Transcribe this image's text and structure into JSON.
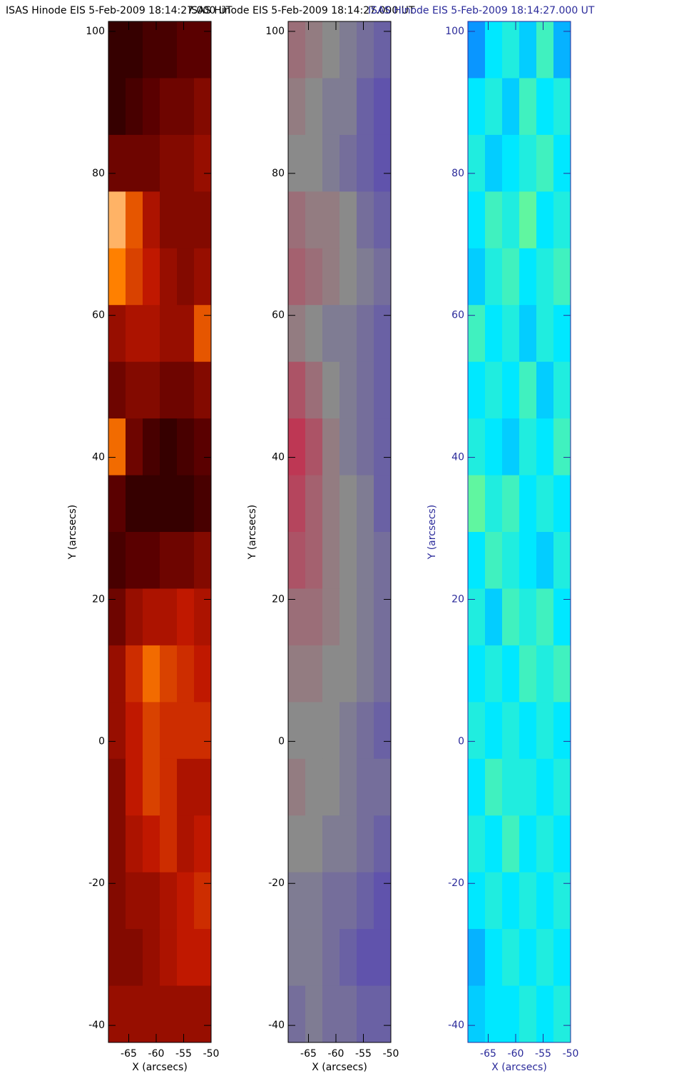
{
  "chart_data": [
    {
      "type": "heatmap",
      "title": "ISAS Hinode EIS  5-Feb-2009 18:14:27.000 UT",
      "xlabel": "X (arcsecs)",
      "ylabel": "Y (arcsecs)",
      "xlim": [
        -68.7,
        -50
      ],
      "ylim": [
        -42.4,
        101.4
      ],
      "xticks": [
        -65,
        -60,
        -55,
        -50
      ],
      "yticks": [
        -40,
        -20,
        0,
        20,
        40,
        60,
        80,
        100
      ],
      "color": "#000000",
      "zlim": [
        0,
        100
      ],
      "colormap": [
        "#000000",
        "#5a0000",
        "#c01800",
        "#ff8000",
        "#ffffff"
      ],
      "values": [
        [
          15,
          15,
          20,
          20,
          25,
          25
        ],
        [
          15,
          20,
          25,
          30,
          30,
          35
        ],
        [
          30,
          30,
          30,
          35,
          35,
          40
        ],
        [
          85,
          65,
          45,
          35,
          35,
          35
        ],
        [
          75,
          60,
          50,
          40,
          35,
          40
        ],
        [
          40,
          45,
          45,
          40,
          40,
          65
        ],
        [
          30,
          35,
          35,
          30,
          30,
          35
        ],
        [
          70,
          30,
          20,
          15,
          20,
          25
        ],
        [
          25,
          15,
          15,
          15,
          15,
          20
        ],
        [
          20,
          25,
          25,
          30,
          30,
          35
        ],
        [
          30,
          40,
          45,
          45,
          50,
          45
        ],
        [
          40,
          55,
          70,
          60,
          55,
          50
        ],
        [
          40,
          50,
          60,
          55,
          55,
          55
        ],
        [
          35,
          50,
          60,
          55,
          45,
          45
        ],
        [
          35,
          45,
          50,
          55,
          45,
          50
        ],
        [
          35,
          40,
          40,
          45,
          50,
          55
        ],
        [
          35,
          35,
          40,
          45,
          50,
          50
        ],
        [
          40,
          40,
          40,
          40,
          40,
          40
        ]
      ]
    },
    {
      "type": "heatmap",
      "title": "ISAS Hinode EIS  5-Feb-2009 18:14:27.000 UT",
      "xlabel": "X (arcsecs)",
      "ylabel": "Y (arcsecs)",
      "xlim": [
        -68.7,
        -50
      ],
      "ylim": [
        -42.4,
        101.4
      ],
      "xticks": [
        -65,
        -60,
        -55,
        -50
      ],
      "yticks": [
        -40,
        -20,
        0,
        20,
        40,
        60,
        80,
        100
      ],
      "color": "#000000",
      "zlim": [
        -50,
        50
      ],
      "colormap": [
        "#2000e0",
        "#8a8a8a",
        "#e00030"
      ],
      "values": [
        [
          10,
          5,
          0,
          -5,
          -10,
          -15
        ],
        [
          5,
          0,
          -5,
          -5,
          -15,
          -20
        ],
        [
          0,
          0,
          -5,
          -10,
          -15,
          -20
        ],
        [
          10,
          5,
          5,
          0,
          -10,
          -15
        ],
        [
          15,
          10,
          5,
          0,
          -5,
          -10
        ],
        [
          5,
          0,
          -5,
          -5,
          -10,
          -15
        ],
        [
          20,
          10,
          0,
          -5,
          -10,
          -15
        ],
        [
          30,
          20,
          5,
          -5,
          -10,
          -15
        ],
        [
          25,
          15,
          5,
          0,
          -5,
          -15
        ],
        [
          20,
          15,
          5,
          0,
          -5,
          -10
        ],
        [
          10,
          10,
          5,
          0,
          -5,
          -10
        ],
        [
          5,
          5,
          0,
          0,
          -5,
          -10
        ],
        [
          0,
          0,
          0,
          -5,
          -10,
          -15
        ],
        [
          5,
          0,
          0,
          -5,
          -10,
          -10
        ],
        [
          0,
          0,
          -5,
          -5,
          -10,
          -15
        ],
        [
          -5,
          -5,
          -10,
          -10,
          -15,
          -20
        ],
        [
          -5,
          -5,
          -10,
          -15,
          -20,
          -20
        ],
        [
          -10,
          -5,
          -10,
          -10,
          -15,
          -15
        ]
      ]
    },
    {
      "type": "heatmap",
      "title": "ISAS Hinode EIS  5-Feb-2009 18:14:27.000 UT",
      "xlabel": "X (arcsecs)",
      "ylabel": "Y (arcsecs)",
      "xlim": [
        -68.7,
        -50
      ],
      "ylim": [
        -42.4,
        101.4
      ],
      "xticks": [
        -65,
        -60,
        -55,
        -50
      ],
      "yticks": [
        -40,
        -20,
        0,
        20,
        40,
        60,
        80,
        100
      ],
      "color": "#2a2a9a",
      "zlim": [
        0,
        100
      ],
      "colormap": [
        "#0000c0",
        "#1060ff",
        "#00e8ff",
        "#a0ff60",
        "#ffe000"
      ],
      "values": [
        [
          35,
          50,
          55,
          45,
          60,
          40
        ],
        [
          50,
          55,
          45,
          60,
          50,
          55
        ],
        [
          55,
          45,
          50,
          55,
          60,
          50
        ],
        [
          50,
          60,
          55,
          65,
          50,
          55
        ],
        [
          45,
          55,
          60,
          50,
          55,
          60
        ],
        [
          60,
          50,
          55,
          45,
          55,
          50
        ],
        [
          50,
          55,
          50,
          60,
          45,
          55
        ],
        [
          55,
          50,
          45,
          55,
          50,
          60
        ],
        [
          65,
          55,
          60,
          50,
          55,
          50
        ],
        [
          50,
          60,
          55,
          50,
          45,
          55
        ],
        [
          55,
          45,
          60,
          55,
          60,
          50
        ],
        [
          50,
          55,
          50,
          60,
          55,
          60
        ],
        [
          55,
          50,
          55,
          50,
          55,
          50
        ],
        [
          50,
          60,
          55,
          55,
          50,
          55
        ],
        [
          55,
          50,
          60,
          50,
          55,
          50
        ],
        [
          50,
          55,
          50,
          55,
          50,
          55
        ],
        [
          40,
          50,
          55,
          50,
          55,
          50
        ],
        [
          45,
          50,
          50,
          55,
          50,
          55
        ]
      ]
    }
  ]
}
